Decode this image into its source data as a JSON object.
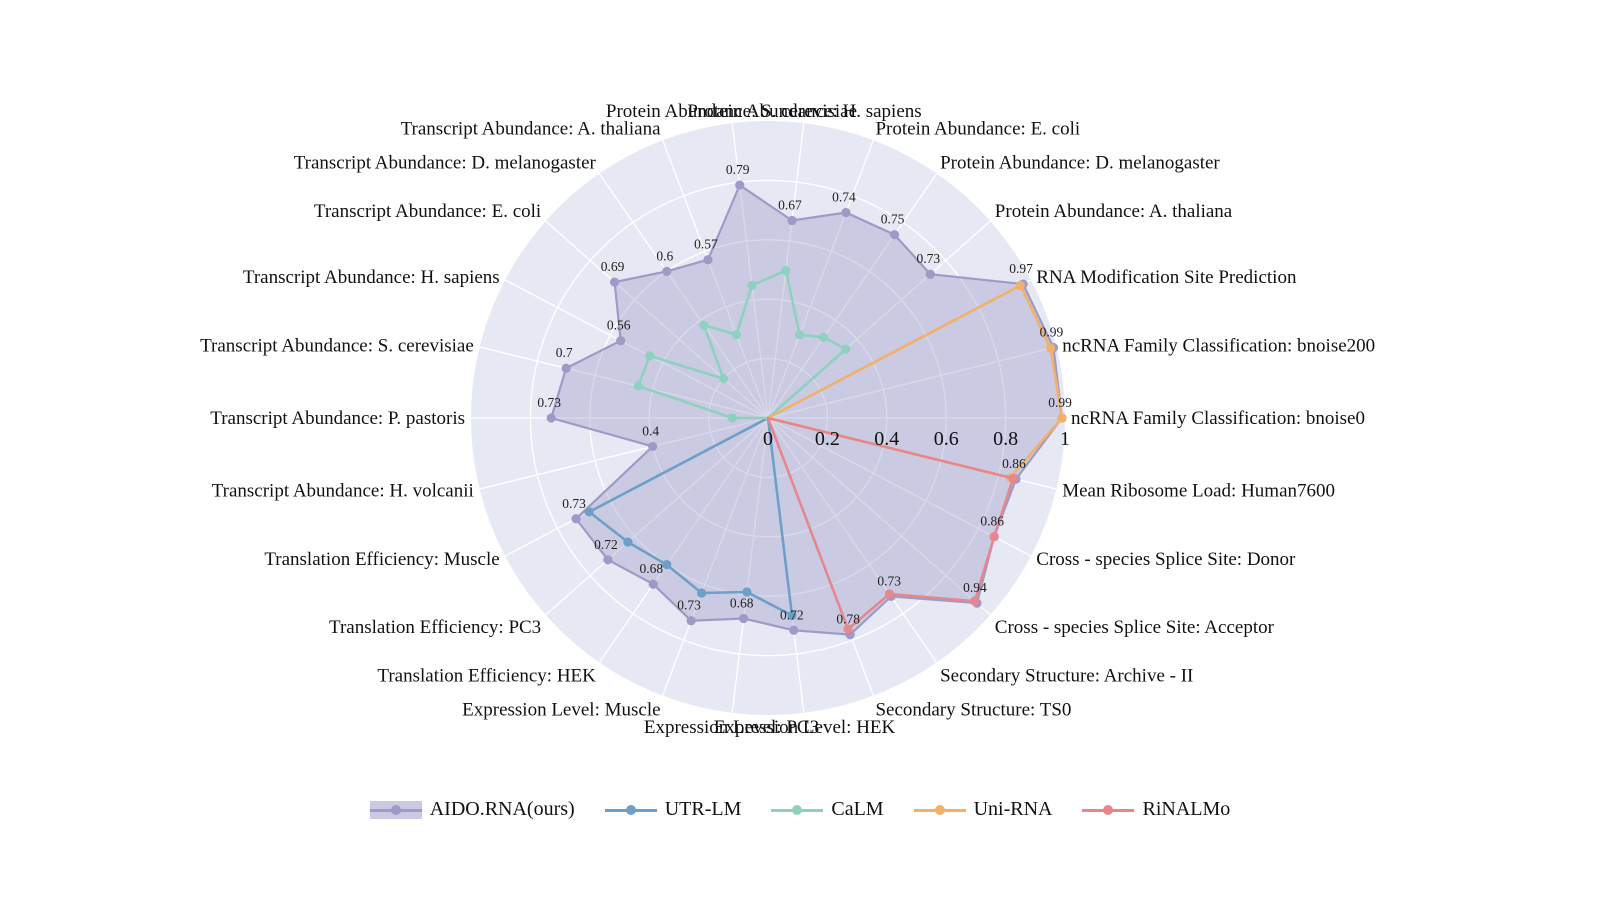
{
  "chart_data": {
    "type": "radar",
    "radial_range": [
      0,
      1
    ],
    "radial_ticks": [
      "0",
      "0.2",
      "0.4",
      "0.6",
      "0.8",
      "1"
    ],
    "grid": true,
    "legend_position": "bottom",
    "categories": [
      "ncRNA Family Classification: bnoise0",
      "Mean Ribosome Load: Human7600",
      "Cross - species Splice Site: Donor",
      "Cross - species Splice Site: Acceptor",
      "Secondary Structure: Archive - II",
      "Secondary Structure: TS0",
      "Expression Level: HEK",
      "Expression Level: PC3",
      "Expression Level: Muscle",
      "Translation Efficiency: HEK",
      "Translation Efficiency: PC3",
      "Translation Efficiency: Muscle",
      "Transcript Abundance:  H. volcanii",
      "Transcript Abundance:  P. pastoris",
      "Transcript Abundance:  S. cerevisiae",
      "Transcript Abundance:  H. sapiens",
      "Transcript Abundance:  E. coli",
      "Transcript Abundance:  D. melanogaster",
      "Transcript Abundance:  A. thaliana",
      "Protein Abundance:  S. cerevisiae",
      "Protein Abundance:  H. sapiens",
      "Protein Abundance:  E. coli",
      "Protein Abundance:  D. melanogaster",
      "Protein Abundance:  A. thaliana",
      "RNA Modification Site Prediction",
      "ncRNA Family Classification: bnoise200"
    ],
    "data_labels": [
      "0.99",
      "0.86",
      "0.86",
      "0.94",
      "0.73",
      "0.78",
      "0.72",
      "0.68",
      "0.73",
      "0.68",
      "0.72",
      "0.73",
      "0.4",
      "0.73",
      "0.7",
      "0.56",
      "0.69",
      "0.6",
      "0.57",
      "0.79",
      "0.67",
      "0.74",
      "0.75",
      "0.73",
      "0.97",
      "0.99"
    ],
    "series": [
      {
        "name": "AIDO.RNA(ours)",
        "color": "#9e9ac8",
        "fill": true,
        "values": [
          0.99,
          0.86,
          0.86,
          0.94,
          0.73,
          0.78,
          0.72,
          0.68,
          0.73,
          0.68,
          0.72,
          0.73,
          0.4,
          0.73,
          0.7,
          0.56,
          0.69,
          0.6,
          0.57,
          0.79,
          0.67,
          0.74,
          0.75,
          0.73,
          0.97,
          0.99
        ]
      },
      {
        "name": "UTR-LM",
        "color": "#6e9fc9",
        "fill": false,
        "values": [
          0,
          0,
          0,
          0,
          0,
          0,
          0.67,
          0.59,
          0.63,
          0.6,
          0.63,
          0.68,
          0,
          0,
          0,
          0,
          0,
          0,
          0,
          0,
          0,
          0,
          0,
          0,
          0,
          0
        ]
      },
      {
        "name": "CaLM",
        "color": "#8fd1bf",
        "fill": false,
        "values": [
          0,
          0,
          0,
          0,
          0,
          0,
          0,
          0,
          0,
          0,
          0,
          0,
          0,
          0.12,
          0.45,
          0.45,
          0.2,
          0.38,
          0.3,
          0.45,
          0.5,
          0.3,
          0.33,
          0.35,
          0,
          0
        ]
      },
      {
        "name": "Uni-RNA",
        "color": "#f2b168",
        "fill": false,
        "values": [
          0.99,
          0.84,
          0,
          0,
          0,
          0,
          0,
          0,
          0,
          0,
          0,
          0,
          0,
          0,
          0,
          0,
          0,
          0,
          0,
          0,
          0,
          0,
          0,
          0,
          0.96,
          0.98
        ]
      },
      {
        "name": "RiNALMo",
        "color": "#e5878c",
        "fill": false,
        "values": [
          0,
          0.85,
          0.86,
          0.93,
          0.72,
          0.76,
          0,
          0,
          0,
          0,
          0,
          0,
          0,
          0,
          0,
          0,
          0,
          0,
          0,
          0,
          0,
          0,
          0,
          0,
          0,
          0
        ]
      }
    ]
  }
}
